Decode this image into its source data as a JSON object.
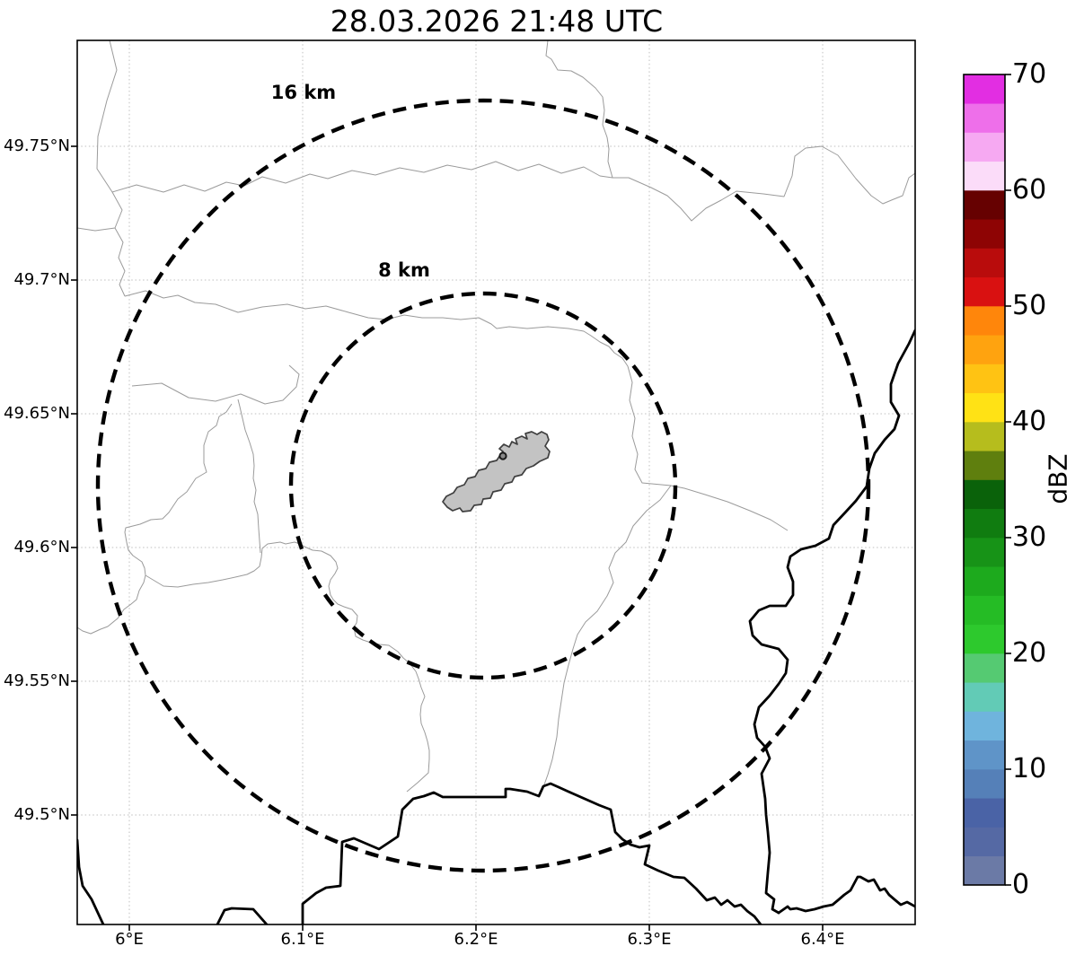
{
  "title": "28.03.2026 21:48 UTC",
  "map": {
    "x_tick_labels": [
      "6°E",
      "6.1°E",
      "6.2°E",
      "6.3°E",
      "6.4°E"
    ],
    "y_tick_labels": [
      "49.75°N",
      "49.7°N",
      "49.65°N",
      "49.6°N",
      "49.55°N",
      "49.5°N"
    ],
    "range_rings": [
      {
        "label": "16 km",
        "radius_km": 16
      },
      {
        "label": "8 km",
        "radius_km": 8
      }
    ]
  },
  "colorbar": {
    "label": "dBZ",
    "min": 0,
    "max": 70,
    "tick_values": [
      0,
      10,
      20,
      30,
      40,
      50,
      60,
      70
    ],
    "segment_step_dbz": 2.5,
    "colors_low_to_high": [
      "#6b7aa6",
      "#5569a4",
      "#4a63a6",
      "#5580b8",
      "#5f94c8",
      "#6fb4dd",
      "#62cbb6",
      "#55ca72",
      "#2dc92d",
      "#25bc25",
      "#1daa1d",
      "#179317",
      "#107c10",
      "#0a620a",
      "#5f7f0e",
      "#b6bd1d",
      "#ffe215",
      "#ffc313",
      "#ffa30f",
      "#ff860b",
      "#d91111",
      "#b90c0c",
      "#8e0404",
      "#660101",
      "#fbdcf9",
      "#f6a9f2",
      "#ee6fea",
      "#e22ee2"
    ]
  },
  "chart_data": {
    "type": "map",
    "title": "28.03.2026 21:48 UTC",
    "x_axis_ticks": [
      "6°E",
      "6.1°E",
      "6.2°E",
      "6.3°E",
      "6.4°E"
    ],
    "y_axis_ticks": [
      "49.75°N",
      "49.7°N",
      "49.65°N",
      "49.6°N",
      "49.55°N",
      "49.5°N"
    ],
    "x_range_deg_east": [
      5.97,
      6.455
    ],
    "y_range_deg_north": [
      49.458,
      49.79
    ],
    "grid": "dotted lat/lon grid at every labeled tick",
    "range_rings_km": [
      8,
      16
    ],
    "colorbar_label": "dBZ",
    "colorbar_range": [
      0,
      70
    ],
    "colorbar_tick_step": 10,
    "colorbar_segment_step": 2.5,
    "reflectivity_echoes": "none visible (empty white field)"
  }
}
